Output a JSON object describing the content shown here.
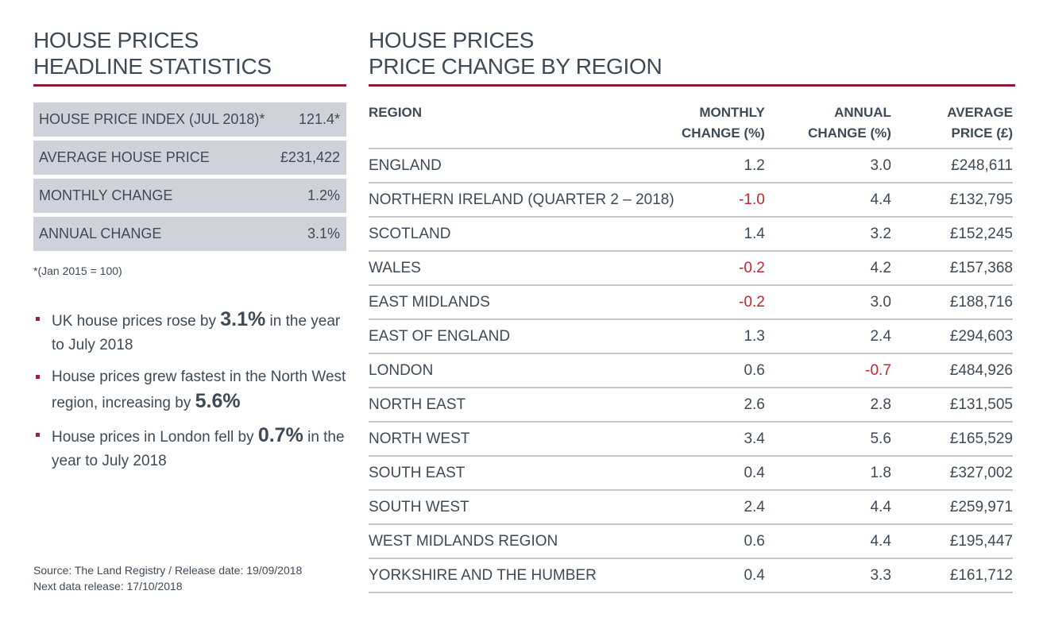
{
  "left": {
    "heading_line1": "HOUSE PRICES",
    "heading_line2": "HEADLINE STATISTICS",
    "stats": [
      {
        "label": "HOUSE PRICE INDEX (JUL 2018)*",
        "value": "121.4*"
      },
      {
        "label": "AVERAGE HOUSE PRICE",
        "value": "£231,422"
      },
      {
        "label": "MONTHLY CHANGE",
        "value": "1.2%"
      },
      {
        "label": "ANNUAL CHANGE",
        "value": "3.1%"
      }
    ],
    "footnote": "*(Jan 2015 = 100)",
    "bullets": [
      {
        "pre": "UK house prices rose by ",
        "bold": "3.1%",
        "post": " in the year to July 2018"
      },
      {
        "pre": "House prices grew fastest in the North West region, increasing by ",
        "bold": "5.6%",
        "post": ""
      },
      {
        "pre": "House prices in London fell by ",
        "bold": "0.7%",
        "post": " in the year to July 2018"
      }
    ],
    "source_line1": "Source: The Land Registry / Release date: 19/09/2018",
    "source_line2": "Next data release: 17/10/2018"
  },
  "right": {
    "heading_line1": "HOUSE PRICES",
    "heading_line2": "PRICE CHANGE BY REGION",
    "columns": {
      "region": "REGION",
      "monthly_1": "MONTHLY",
      "monthly_2": "CHANGE (%)",
      "annual_1": "ANNUAL",
      "annual_2": "CHANGE (%)",
      "price_1": "AVERAGE",
      "price_2": "PRICE (£)"
    },
    "rows": [
      {
        "region": "ENGLAND",
        "monthly": "1.2",
        "annual": "3.0",
        "price": "£248,611"
      },
      {
        "region": "NORTHERN IRELAND (QUARTER 2 – 2018)",
        "monthly": "-1.0",
        "annual": "4.4",
        "price": "£132,795"
      },
      {
        "region": "SCOTLAND",
        "monthly": "1.4",
        "annual": "3.2",
        "price": "£152,245"
      },
      {
        "region": "WALES",
        "monthly": "-0.2",
        "annual": "4.2",
        "price": "£157,368"
      },
      {
        "region": "EAST MIDLANDS",
        "monthly": "-0.2",
        "annual": "3.0",
        "price": "£188,716"
      },
      {
        "region": "EAST OF ENGLAND",
        "monthly": "1.3",
        "annual": "2.4",
        "price": "£294,603"
      },
      {
        "region": "LONDON",
        "monthly": "0.6",
        "annual": "-0.7",
        "price": "£484,926"
      },
      {
        "region": "NORTH EAST",
        "monthly": "2.6",
        "annual": "2.8",
        "price": "£131,505"
      },
      {
        "region": "NORTH WEST",
        "monthly": "3.4",
        "annual": "5.6",
        "price": "£165,529"
      },
      {
        "region": "SOUTH EAST",
        "monthly": "0.4",
        "annual": "1.8",
        "price": "£327,002"
      },
      {
        "region": "SOUTH WEST",
        "monthly": "2.4",
        "annual": "4.4",
        "price": "£259,971"
      },
      {
        "region": "WEST MIDLANDS REGION",
        "monthly": "0.6",
        "annual": "4.4",
        "price": "£195,447"
      },
      {
        "region": "YORKSHIRE AND THE HUMBER",
        "monthly": "0.4",
        "annual": "3.3",
        "price": "£161,712"
      }
    ]
  },
  "colors": {
    "accent_rule": "#8e1a35",
    "negative_value": "#c0262d",
    "stat_background": "#cfd3d9",
    "text": "#3d4a57"
  }
}
